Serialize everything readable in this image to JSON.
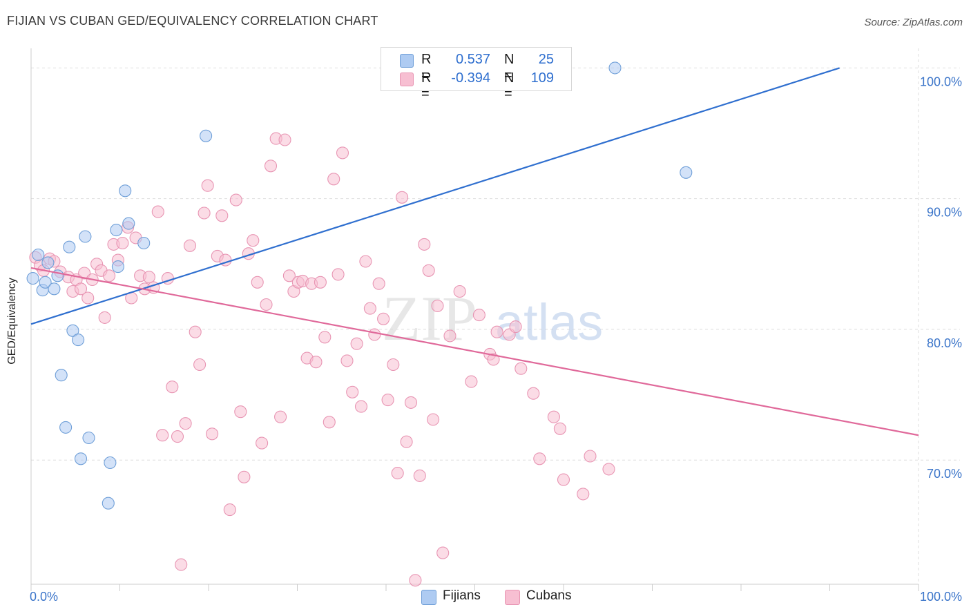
{
  "title": "FIJIAN VS CUBAN GED/EQUIVALENCY CORRELATION CHART",
  "source": "Source: ZipAtlas.com",
  "watermark": {
    "zip": "ZIP",
    "atlas": "atlas"
  },
  "legend_top": [
    {
      "r_label": "R =",
      "r_value": "0.537",
      "n_label": "N =",
      "n_value": "25"
    },
    {
      "r_label": "R =",
      "r_value": "-0.394",
      "n_label": "N =",
      "n_value": "109"
    }
  ],
  "legend_bottom": [
    {
      "label": "Fijians"
    },
    {
      "label": "Cubans"
    }
  ],
  "colors": {
    "fijian_fill": "#aecbf2",
    "fijian_stroke": "#6f9fd8",
    "fijian_line": "#2f6fcf",
    "cuban_fill": "#f7bfd2",
    "cuban_stroke": "#e895b3",
    "cuban_line": "#e0699a",
    "axis_text": "#3a74c9",
    "grid": "#dedede"
  },
  "chart_data": {
    "type": "scatter",
    "title": "FIJIAN VS CUBAN GED/EQUIVALENCY CORRELATION CHART",
    "xlabel": "",
    "ylabel": "GED/Equivalency",
    "xlim": [
      0,
      100
    ],
    "ylim": [
      60.5,
      101.5
    ],
    "x_tick_labels": [
      {
        "value": 0,
        "label": "0.0%"
      },
      {
        "value": 100,
        "label": "100.0%"
      }
    ],
    "y_tick_labels": [
      {
        "value": 100,
        "label": "100.0%"
      },
      {
        "value": 90,
        "label": "90.0%"
      },
      {
        "value": 80,
        "label": "80.0%"
      },
      {
        "value": 70,
        "label": "70.0%"
      }
    ],
    "legend_position": "top-center",
    "grid": true,
    "series": [
      {
        "name": "Fijians",
        "r": 0.537,
        "n": 25,
        "trend": {
          "x": [
            0,
            91.1
          ],
          "y": [
            80.4,
            100.0
          ]
        },
        "points": [
          [
            0.2,
            83.9
          ],
          [
            0.8,
            85.7
          ],
          [
            1.3,
            83.0
          ],
          [
            1.6,
            83.6
          ],
          [
            1.9,
            85.1
          ],
          [
            2.6,
            83.1
          ],
          [
            3.0,
            84.1
          ],
          [
            3.4,
            76.5
          ],
          [
            3.9,
            72.5
          ],
          [
            4.3,
            86.3
          ],
          [
            4.7,
            79.9
          ],
          [
            5.3,
            79.2
          ],
          [
            5.6,
            70.1
          ],
          [
            6.1,
            87.1
          ],
          [
            6.5,
            71.7
          ],
          [
            8.7,
            66.7
          ],
          [
            8.9,
            69.8
          ],
          [
            9.6,
            87.6
          ],
          [
            9.8,
            84.8
          ],
          [
            10.6,
            90.6
          ],
          [
            11.0,
            88.1
          ],
          [
            12.7,
            86.6
          ],
          [
            19.7,
            94.8
          ],
          [
            65.8,
            100.0
          ],
          [
            73.8,
            92.0
          ]
        ]
      },
      {
        "name": "Cubans",
        "r": -0.394,
        "n": 109,
        "trend": {
          "x": [
            0,
            100
          ],
          "y": [
            84.7,
            71.9
          ]
        },
        "points": [
          [
            0.5,
            85.5
          ],
          [
            1.0,
            84.9
          ],
          [
            1.4,
            84.5
          ],
          [
            2.1,
            85.4
          ],
          [
            2.6,
            85.2
          ],
          [
            3.3,
            84.4
          ],
          [
            4.2,
            84.0
          ],
          [
            4.7,
            82.9
          ],
          [
            5.1,
            83.8
          ],
          [
            5.6,
            83.1
          ],
          [
            6.0,
            84.3
          ],
          [
            6.4,
            82.4
          ],
          [
            6.9,
            83.8
          ],
          [
            7.4,
            85.0
          ],
          [
            7.9,
            84.5
          ],
          [
            8.3,
            80.9
          ],
          [
            8.8,
            84.1
          ],
          [
            9.3,
            86.5
          ],
          [
            9.8,
            85.3
          ],
          [
            10.3,
            86.6
          ],
          [
            10.9,
            87.8
          ],
          [
            11.3,
            82.4
          ],
          [
            11.8,
            87.0
          ],
          [
            12.3,
            84.1
          ],
          [
            12.8,
            83.1
          ],
          [
            13.3,
            84.0
          ],
          [
            13.8,
            83.2
          ],
          [
            14.3,
            89.0
          ],
          [
            14.8,
            71.9
          ],
          [
            15.4,
            83.9
          ],
          [
            15.9,
            75.6
          ],
          [
            16.5,
            71.8
          ],
          [
            16.9,
            62.0
          ],
          [
            17.4,
            72.8
          ],
          [
            17.9,
            86.4
          ],
          [
            18.5,
            79.8
          ],
          [
            19.0,
            77.3
          ],
          [
            19.5,
            88.9
          ],
          [
            19.9,
            91.0
          ],
          [
            20.4,
            72.0
          ],
          [
            21.0,
            85.6
          ],
          [
            21.5,
            88.7
          ],
          [
            21.9,
            85.3
          ],
          [
            22.4,
            66.2
          ],
          [
            23.1,
            89.9
          ],
          [
            23.6,
            73.7
          ],
          [
            24.0,
            68.7
          ],
          [
            24.5,
            85.8
          ],
          [
            25.0,
            86.8
          ],
          [
            25.5,
            83.6
          ],
          [
            26.0,
            71.3
          ],
          [
            26.5,
            81.9
          ],
          [
            27.0,
            92.5
          ],
          [
            27.6,
            94.6
          ],
          [
            28.1,
            73.3
          ],
          [
            28.6,
            94.5
          ],
          [
            29.1,
            84.1
          ],
          [
            29.6,
            82.9
          ],
          [
            30.1,
            83.6
          ],
          [
            30.6,
            83.7
          ],
          [
            31.1,
            77.8
          ],
          [
            31.6,
            83.5
          ],
          [
            32.1,
            77.5
          ],
          [
            32.6,
            83.6
          ],
          [
            33.1,
            79.4
          ],
          [
            33.6,
            72.9
          ],
          [
            34.1,
            91.5
          ],
          [
            34.6,
            84.2
          ],
          [
            35.1,
            93.5
          ],
          [
            35.6,
            77.6
          ],
          [
            36.2,
            75.2
          ],
          [
            36.7,
            78.9
          ],
          [
            37.2,
            74.1
          ],
          [
            37.7,
            85.2
          ],
          [
            38.2,
            81.6
          ],
          [
            38.7,
            79.6
          ],
          [
            39.2,
            83.5
          ],
          [
            39.7,
            80.8
          ],
          [
            40.2,
            74.6
          ],
          [
            40.8,
            77.3
          ],
          [
            41.3,
            69.0
          ],
          [
            41.8,
            90.1
          ],
          [
            42.3,
            71.4
          ],
          [
            42.8,
            74.4
          ],
          [
            43.3,
            60.8
          ],
          [
            43.8,
            68.8
          ],
          [
            44.3,
            86.5
          ],
          [
            44.8,
            84.5
          ],
          [
            45.3,
            73.1
          ],
          [
            45.8,
            81.8
          ],
          [
            46.4,
            62.9
          ],
          [
            47.2,
            79.5
          ],
          [
            48.3,
            82.9
          ],
          [
            49.6,
            76.0
          ],
          [
            50.5,
            81.1
          ],
          [
            51.7,
            78.1
          ],
          [
            52.1,
            77.7
          ],
          [
            52.5,
            79.8
          ],
          [
            53.9,
            79.6
          ],
          [
            54.6,
            80.2
          ],
          [
            55.2,
            77.0
          ],
          [
            56.6,
            75.1
          ],
          [
            57.3,
            70.1
          ],
          [
            58.9,
            73.3
          ],
          [
            59.6,
            72.4
          ],
          [
            60.0,
            68.5
          ],
          [
            62.2,
            67.4
          ],
          [
            63.0,
            70.3
          ],
          [
            65.1,
            69.3
          ]
        ]
      }
    ]
  }
}
